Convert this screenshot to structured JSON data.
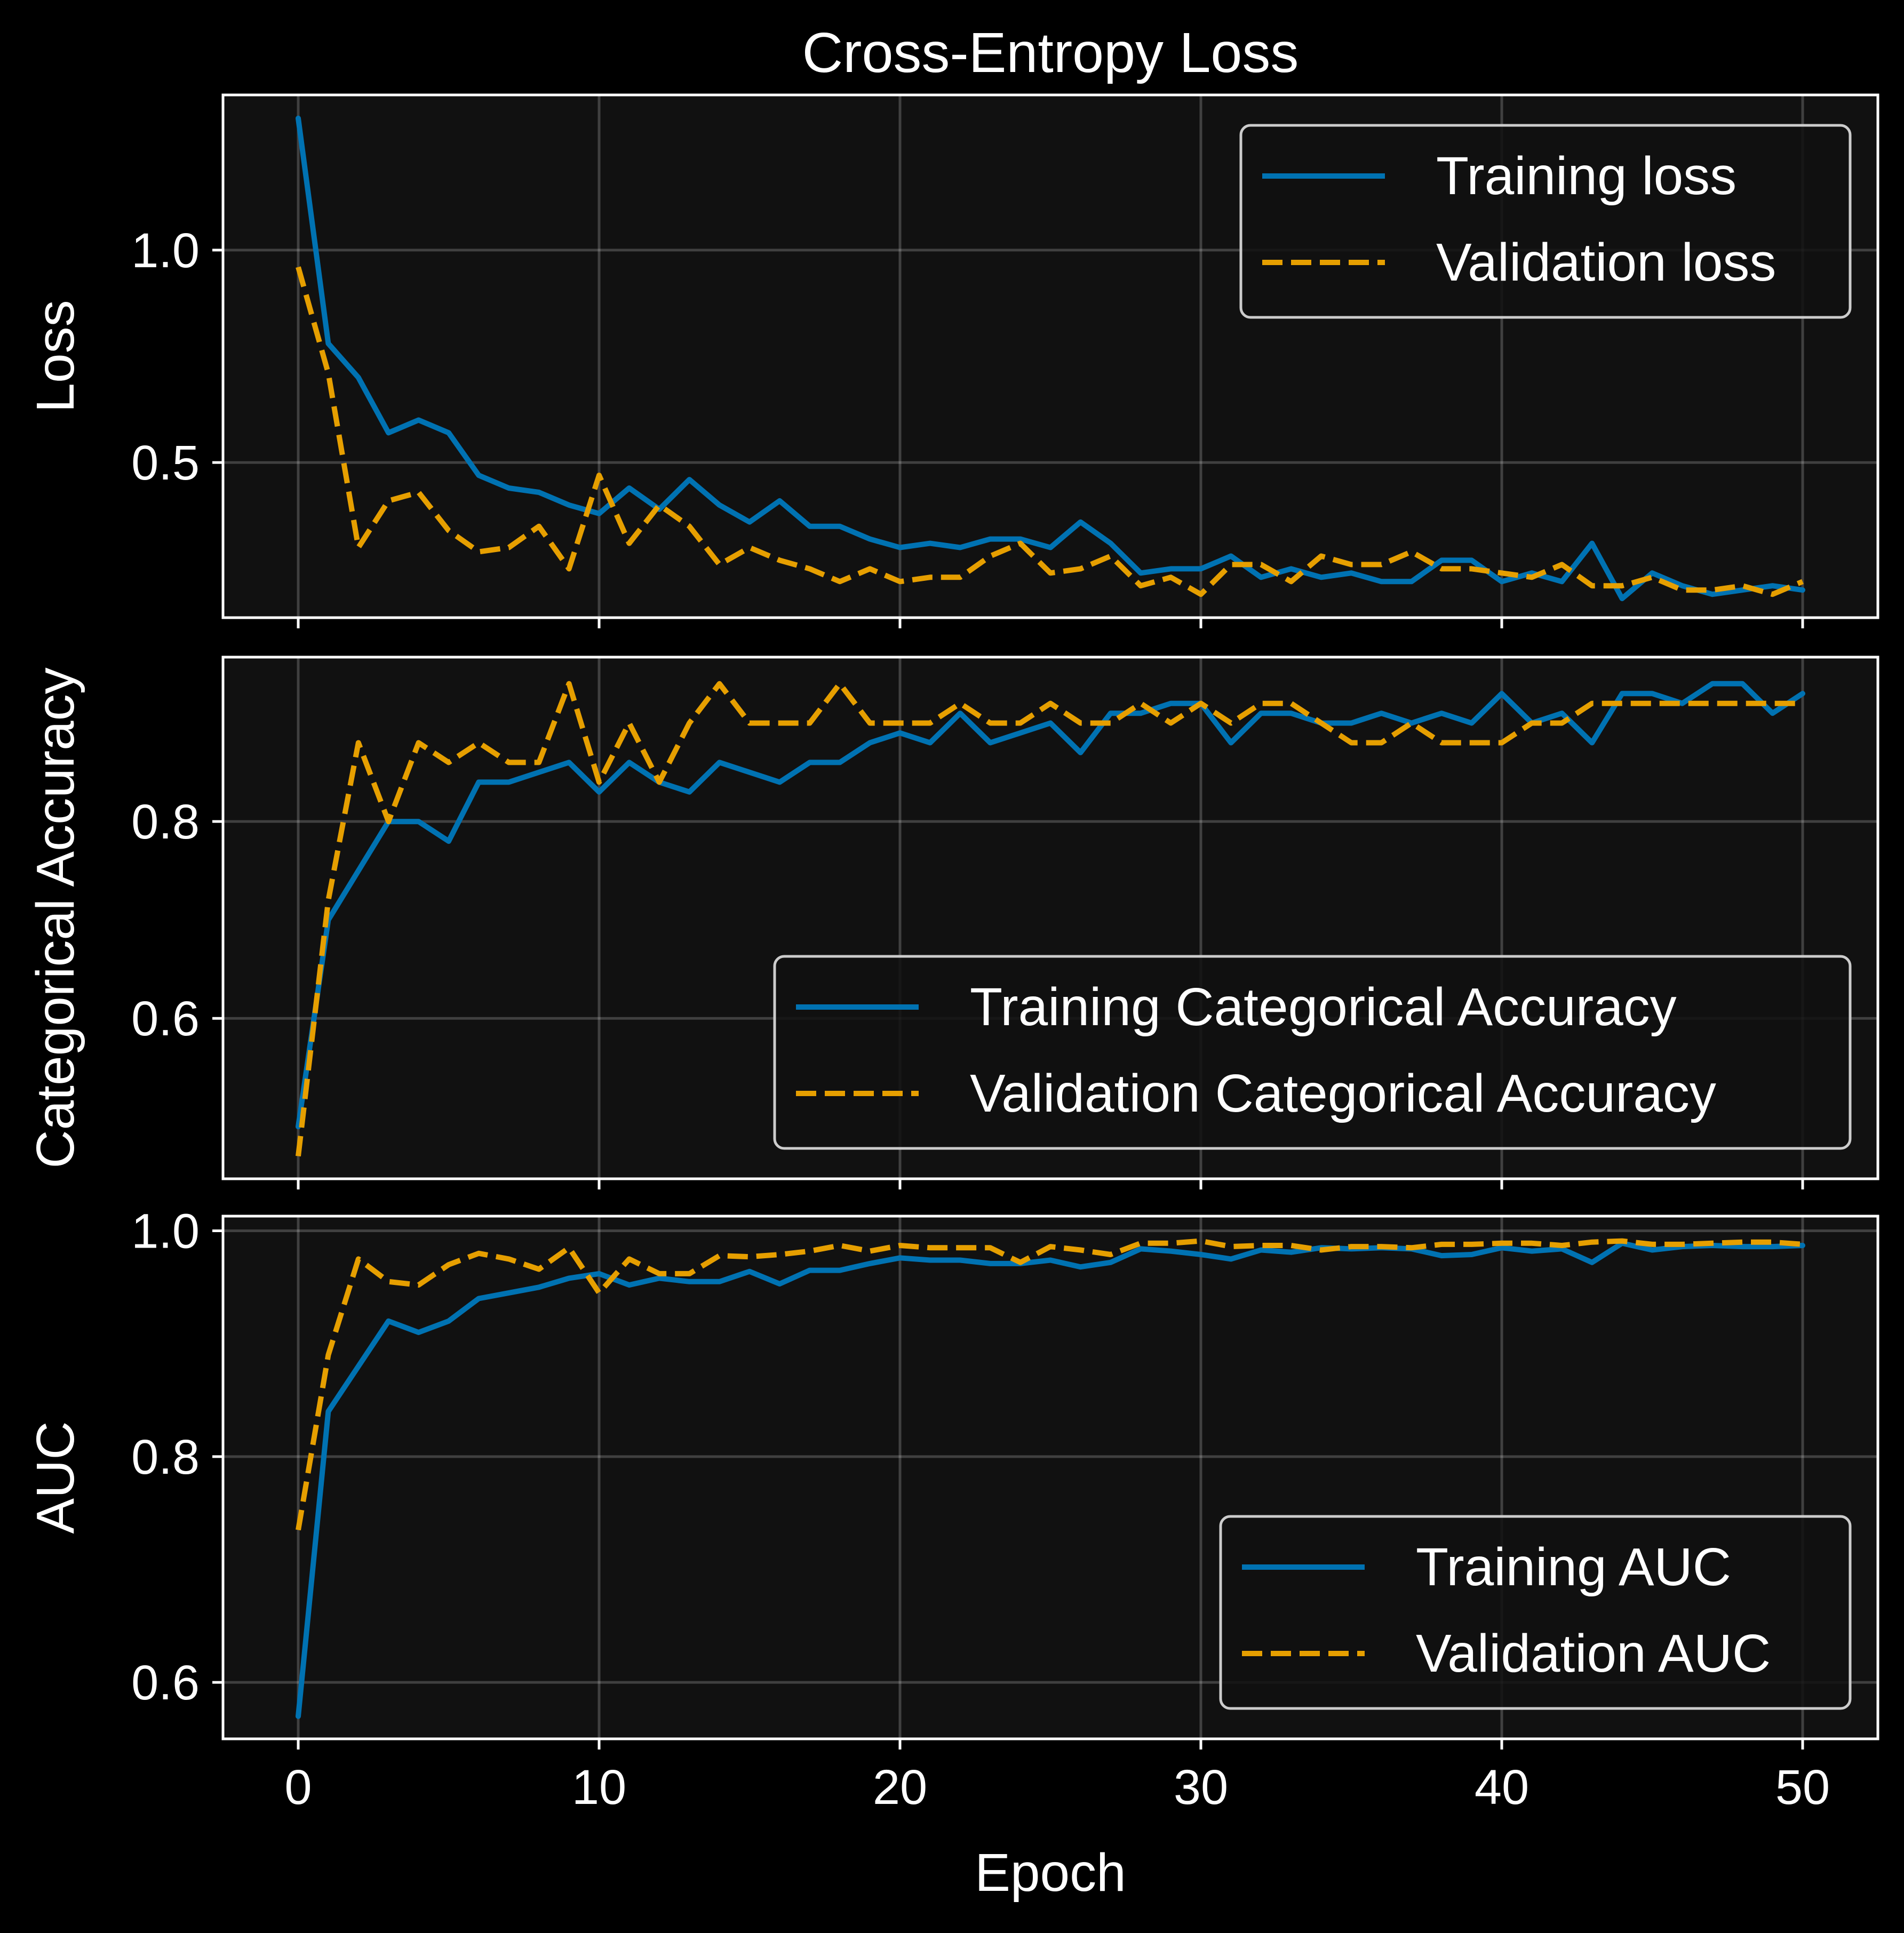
{
  "chart_data": [
    {
      "type": "line",
      "title": "Cross-Entropy Loss",
      "xlabel": "",
      "ylabel": "Loss",
      "xlim": [
        -2.5,
        52.5
      ],
      "ylim": [
        0.135,
        1.365
      ],
      "xticks": [
        0,
        10,
        20,
        30,
        40,
        50
      ],
      "xtick_labels": [
        "0",
        "10",
        "20",
        "30",
        "40",
        "50"
      ],
      "yticks": [
        0.5,
        1.0
      ],
      "ytick_labels": [
        "0.5",
        "1.0"
      ],
      "grid": true,
      "legend": "top-right",
      "x": [
        0,
        1,
        2,
        3,
        4,
        5,
        6,
        7,
        8,
        9,
        10,
        11,
        12,
        13,
        14,
        15,
        16,
        17,
        18,
        19,
        20,
        21,
        22,
        23,
        24,
        25,
        26,
        27,
        28,
        29,
        30,
        31,
        32,
        33,
        34,
        35,
        36,
        37,
        38,
        39,
        40,
        41,
        42,
        43,
        44,
        45,
        46,
        47,
        48,
        49,
        50
      ],
      "series": [
        {
          "name": "Training loss",
          "color": "#0072B2",
          "style": "solid",
          "values": [
            1.31,
            0.78,
            0.7,
            0.57,
            0.6,
            0.57,
            0.47,
            0.44,
            0.43,
            0.4,
            0.38,
            0.44,
            0.39,
            0.46,
            0.4,
            0.36,
            0.41,
            0.35,
            0.35,
            0.32,
            0.3,
            0.31,
            0.3,
            0.32,
            0.32,
            0.3,
            0.36,
            0.31,
            0.24,
            0.25,
            0.25,
            0.28,
            0.23,
            0.25,
            0.23,
            0.24,
            0.22,
            0.22,
            0.27,
            0.27,
            0.22,
            0.24,
            0.22,
            0.31,
            0.18,
            0.24,
            0.21,
            0.19,
            0.2,
            0.21,
            0.2
          ]
        },
        {
          "name": "Validation loss",
          "color": "#E69F00",
          "style": "dashed",
          "values": [
            0.96,
            0.71,
            0.3,
            0.41,
            0.43,
            0.34,
            0.29,
            0.3,
            0.35,
            0.25,
            0.47,
            0.31,
            0.4,
            0.35,
            0.26,
            0.3,
            0.27,
            0.25,
            0.22,
            0.25,
            0.22,
            0.23,
            0.23,
            0.28,
            0.31,
            0.24,
            0.25,
            0.28,
            0.21,
            0.23,
            0.19,
            0.26,
            0.26,
            0.22,
            0.28,
            0.26,
            0.26,
            0.29,
            0.25,
            0.25,
            0.24,
            0.23,
            0.26,
            0.21,
            0.21,
            0.23,
            0.2,
            0.2,
            0.21,
            0.19,
            0.22
          ]
        }
      ]
    },
    {
      "type": "line",
      "title": "",
      "xlabel": "",
      "ylabel": "Categorical Accuracy",
      "xlim": [
        -2.5,
        52.5
      ],
      "ylim": [
        0.437,
        0.967
      ],
      "xticks": [
        0,
        10,
        20,
        30,
        40,
        50
      ],
      "xtick_labels": [
        "0",
        "10",
        "20",
        "30",
        "40",
        "50"
      ],
      "yticks": [
        0.6,
        0.8
      ],
      "ytick_labels": [
        "0.6",
        "0.8"
      ],
      "grid": true,
      "legend": "bottom-right",
      "x": [
        0,
        1,
        2,
        3,
        4,
        5,
        6,
        7,
        8,
        9,
        10,
        11,
        12,
        13,
        14,
        15,
        16,
        17,
        18,
        19,
        20,
        21,
        22,
        23,
        24,
        25,
        26,
        27,
        28,
        29,
        30,
        31,
        32,
        33,
        34,
        35,
        36,
        37,
        38,
        39,
        40,
        41,
        42,
        43,
        44,
        45,
        46,
        47,
        48,
        49,
        50
      ],
      "series": [
        {
          "name": "Training Categorical Accuracy",
          "color": "#0072B2",
          "style": "solid",
          "values": [
            0.49,
            0.7,
            0.75,
            0.8,
            0.8,
            0.78,
            0.84,
            0.84,
            0.85,
            0.86,
            0.83,
            0.86,
            0.84,
            0.83,
            0.86,
            0.85,
            0.84,
            0.86,
            0.86,
            0.88,
            0.89,
            0.88,
            0.91,
            0.88,
            0.89,
            0.9,
            0.87,
            0.91,
            0.91,
            0.92,
            0.92,
            0.88,
            0.91,
            0.91,
            0.9,
            0.9,
            0.91,
            0.9,
            0.91,
            0.9,
            0.93,
            0.9,
            0.91,
            0.88,
            0.93,
            0.93,
            0.92,
            0.94,
            0.94,
            0.91,
            0.93
          ]
        },
        {
          "name": "Validation Categorical Accuracy",
          "color": "#E69F00",
          "style": "dashed",
          "values": [
            0.46,
            0.72,
            0.88,
            0.8,
            0.88,
            0.86,
            0.88,
            0.86,
            0.86,
            0.94,
            0.84,
            0.9,
            0.84,
            0.9,
            0.94,
            0.9,
            0.9,
            0.9,
            0.94,
            0.9,
            0.9,
            0.9,
            0.92,
            0.9,
            0.9,
            0.92,
            0.9,
            0.9,
            0.92,
            0.9,
            0.92,
            0.9,
            0.92,
            0.92,
            0.9,
            0.88,
            0.88,
            0.9,
            0.88,
            0.88,
            0.88,
            0.9,
            0.9,
            0.92,
            0.92,
            0.92,
            0.92,
            0.92,
            0.92,
            0.92,
            0.92
          ]
        }
      ]
    },
    {
      "type": "line",
      "title": "",
      "xlabel": "Epoch",
      "ylabel": "AUC",
      "xlim": [
        -2.5,
        52.5
      ],
      "ylim": [
        0.55,
        1.013
      ],
      "xticks": [
        0,
        10,
        20,
        30,
        40,
        50
      ],
      "xtick_labels": [
        "0",
        "10",
        "20",
        "30",
        "40",
        "50"
      ],
      "yticks": [
        0.6,
        0.8,
        1.0
      ],
      "ytick_labels": [
        "0.6",
        "0.8",
        "1.0"
      ],
      "grid": true,
      "legend": "bottom-right",
      "x": [
        0,
        1,
        2,
        3,
        4,
        5,
        6,
        7,
        8,
        9,
        10,
        11,
        12,
        13,
        14,
        15,
        16,
        17,
        18,
        19,
        20,
        21,
        22,
        23,
        24,
        25,
        26,
        27,
        28,
        29,
        30,
        31,
        32,
        33,
        34,
        35,
        36,
        37,
        38,
        39,
        40,
        41,
        42,
        43,
        44,
        45,
        46,
        47,
        48,
        49,
        50
      ],
      "series": [
        {
          "name": "Training AUC",
          "color": "#0072B2",
          "style": "solid",
          "values": [
            0.57,
            0.84,
            0.88,
            0.92,
            0.91,
            0.92,
            0.94,
            0.945,
            0.95,
            0.958,
            0.962,
            0.952,
            0.958,
            0.955,
            0.955,
            0.964,
            0.953,
            0.965,
            0.965,
            0.971,
            0.976,
            0.974,
            0.974,
            0.971,
            0.971,
            0.974,
            0.968,
            0.972,
            0.984,
            0.982,
            0.979,
            0.975,
            0.983,
            0.981,
            0.985,
            0.984,
            0.985,
            0.984,
            0.978,
            0.979,
            0.985,
            0.982,
            0.984,
            0.972,
            0.989,
            0.983,
            0.986,
            0.987,
            0.986,
            0.986,
            0.987
          ]
        },
        {
          "name": "Validation AUC",
          "color": "#E69F00",
          "style": "dashed",
          "values": [
            0.735,
            0.89,
            0.975,
            0.955,
            0.952,
            0.97,
            0.98,
            0.975,
            0.966,
            0.985,
            0.945,
            0.975,
            0.962,
            0.962,
            0.978,
            0.977,
            0.979,
            0.982,
            0.987,
            0.982,
            0.987,
            0.985,
            0.985,
            0.985,
            0.972,
            0.986,
            0.983,
            0.979,
            0.989,
            0.989,
            0.991,
            0.986,
            0.987,
            0.987,
            0.983,
            0.986,
            0.986,
            0.985,
            0.988,
            0.988,
            0.989,
            0.989,
            0.987,
            0.99,
            0.991,
            0.988,
            0.988,
            0.989,
            0.99,
            0.99,
            0.988
          ]
        }
      ]
    }
  ]
}
